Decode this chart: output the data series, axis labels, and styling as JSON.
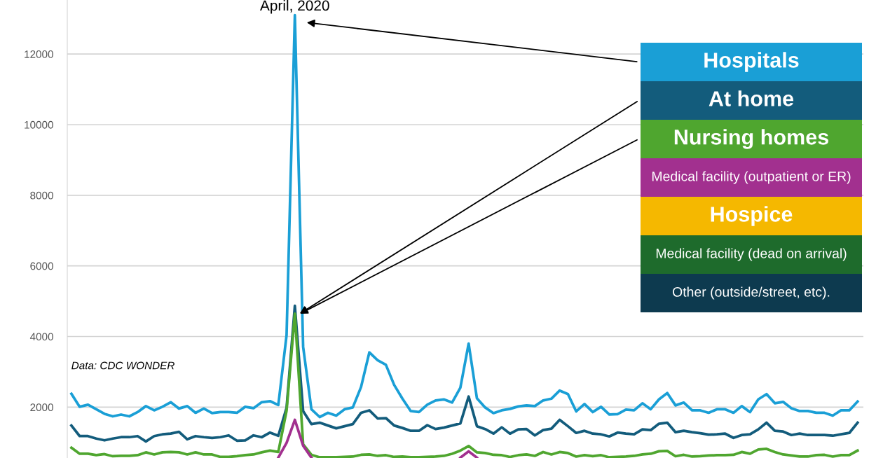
{
  "chart_data": {
    "type": "line",
    "categories": [
      null,
      null,
      null,
      null,
      null,
      null,
      null,
      null,
      null,
      null,
      null,
      null,
      null,
      null,
      null,
      null,
      null,
      null,
      null,
      null,
      null,
      null,
      null,
      null,
      null,
      null,
      null,
      null,
      null,
      null,
      null,
      null,
      null,
      null,
      null,
      null,
      null,
      null,
      null,
      null,
      null,
      null,
      null,
      null,
      null,
      null,
      null,
      null,
      null,
      null,
      null,
      null,
      null,
      null,
      null,
      null,
      null,
      null,
      null,
      null,
      null,
      null,
      null,
      null,
      null,
      null,
      null,
      null,
      null,
      null,
      null,
      null,
      null,
      null,
      null,
      null,
      null,
      null,
      null,
      null,
      null,
      null,
      null,
      null,
      null,
      null,
      null,
      null,
      null,
      null,
      null,
      null,
      null,
      null,
      null,
      null
    ],
    "series": [
      {
        "name": "Hospitals",
        "color": "#1a9fd6",
        "values": [
          2380,
          2010,
          2070,
          1940,
          1810,
          1740,
          1790,
          1740,
          1860,
          2030,
          1910,
          2010,
          2140,
          1960,
          2030,
          1840,
          1960,
          1830,
          1860,
          1860,
          1840,
          2010,
          1970,
          2140,
          2170,
          2060,
          4040,
          13100,
          3710,
          1940,
          1720,
          1840,
          1760,
          1940,
          1990,
          2570,
          3550,
          3330,
          3200,
          2630,
          2240,
          1890,
          1860,
          2070,
          2190,
          2220,
          2130,
          2550,
          3800,
          2250,
          1990,
          1830,
          1910,
          1950,
          2020,
          2050,
          2030,
          2190,
          2240,
          2470,
          2370,
          1880,
          2090,
          1860,
          2010,
          1790,
          1800,
          1930,
          1910,
          2110,
          1940,
          2220,
          2400,
          2050,
          2130,
          1910,
          1910,
          1840,
          1940,
          1940,
          1840,
          2030,
          1860,
          2220,
          2370,
          2110,
          2150,
          1970,
          1890,
          1890,
          1840,
          1840,
          1760,
          1910,
          1910,
          2160
        ]
      },
      {
        "name": "At home",
        "color": "#135c7c",
        "values": [
          1480,
          1180,
          1180,
          1110,
          1060,
          1110,
          1150,
          1150,
          1180,
          1030,
          1180,
          1230,
          1250,
          1300,
          1090,
          1180,
          1150,
          1130,
          1150,
          1200,
          1050,
          1060,
          1200,
          1150,
          1280,
          1190,
          1980,
          4870,
          1890,
          1520,
          1560,
          1480,
          1400,
          1460,
          1520,
          1840,
          1910,
          1680,
          1690,
          1480,
          1410,
          1330,
          1330,
          1490,
          1380,
          1420,
          1480,
          1540,
          2300,
          1460,
          1380,
          1250,
          1430,
          1250,
          1370,
          1380,
          1200,
          1350,
          1390,
          1640,
          1460,
          1270,
          1330,
          1250,
          1230,
          1170,
          1280,
          1250,
          1230,
          1370,
          1350,
          1530,
          1560,
          1290,
          1330,
          1290,
          1260,
          1220,
          1230,
          1250,
          1130,
          1210,
          1230,
          1370,
          1560,
          1330,
          1310,
          1210,
          1250,
          1210,
          1210,
          1210,
          1190,
          1230,
          1270,
          1560
        ]
      },
      {
        "name": "Nursing homes",
        "color": "#4fa62f",
        "values": [
          850,
          680,
          680,
          640,
          670,
          610,
          620,
          620,
          640,
          720,
          660,
          720,
          730,
          720,
          660,
          720,
          660,
          660,
          590,
          590,
          610,
          640,
          660,
          720,
          770,
          730,
          1900,
          4650,
          950,
          650,
          580,
          580,
          580,
          590,
          600,
          650,
          660,
          620,
          640,
          590,
          600,
          580,
          580,
          590,
          600,
          620,
          680,
          770,
          900,
          720,
          700,
          650,
          640,
          590,
          640,
          660,
          620,
          730,
          660,
          730,
          700,
          600,
          640,
          610,
          640,
          580,
          590,
          600,
          620,
          660,
          680,
          750,
          760,
          610,
          650,
          600,
          610,
          630,
          640,
          640,
          650,
          730,
          680,
          800,
          820,
          730,
          660,
          630,
          600,
          600,
          640,
          650,
          600,
          640,
          640,
          770
        ]
      },
      {
        "name": "Medical facility (outpatient or ER)",
        "color": "#a2308f",
        "values": [
          null,
          null,
          null,
          null,
          null,
          null,
          null,
          null,
          null,
          null,
          null,
          null,
          null,
          null,
          null,
          null,
          null,
          null,
          null,
          null,
          null,
          null,
          null,
          null,
          null,
          570,
          990,
          1640,
          910,
          570,
          null,
          null,
          null,
          null,
          null,
          null,
          null,
          null,
          null,
          null,
          null,
          null,
          null,
          null,
          null,
          null,
          null,
          570,
          750,
          570,
          null,
          null,
          null,
          null,
          null,
          null,
          null,
          null,
          null,
          null,
          null,
          null,
          null,
          null,
          null,
          null,
          null,
          null,
          null,
          null,
          null,
          null,
          null,
          null,
          null,
          null,
          null,
          null,
          null,
          null,
          null,
          null,
          null,
          null,
          null,
          null,
          null,
          null,
          null,
          null,
          null,
          null,
          null,
          null,
          null,
          null
        ]
      }
    ],
    "ylim": [
      560,
      13530
    ],
    "yticks": [
      2000,
      4000,
      6000,
      8000,
      10000,
      12000
    ],
    "grid": "y",
    "legend": "top right",
    "tick_labels": "y",
    "annotations": [
      "April, 2020",
      "Data: CDC WONDER",
      "Hospice",
      "Medical facility (dead on arrival)",
      "Other (outside/street, etc)."
    ]
  }
}
